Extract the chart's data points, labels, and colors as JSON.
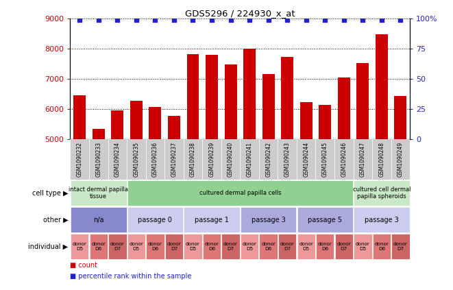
{
  "title": "GDS5296 / 224930_x_at",
  "samples": [
    "GSM1090232",
    "GSM1090233",
    "GSM1090234",
    "GSM1090235",
    "GSM1090236",
    "GSM1090237",
    "GSM1090238",
    "GSM1090239",
    "GSM1090240",
    "GSM1090241",
    "GSM1090242",
    "GSM1090243",
    "GSM1090244",
    "GSM1090245",
    "GSM1090246",
    "GSM1090247",
    "GSM1090248",
    "GSM1090249"
  ],
  "bar_values": [
    6450,
    5350,
    5950,
    6270,
    6080,
    5770,
    7830,
    7800,
    7490,
    8020,
    7160,
    7740,
    6220,
    6140,
    7060,
    7530,
    8490,
    6440
  ],
  "bar_color": "#cc0000",
  "dot_color": "#2222cc",
  "ylim_left": [
    5000,
    9000
  ],
  "ylim_right": [
    0,
    100
  ],
  "yticks_left": [
    5000,
    6000,
    7000,
    8000,
    9000
  ],
  "yticks_right": [
    0,
    25,
    50,
    75,
    100
  ],
  "ytick_right_labels": [
    "0",
    "25",
    "50",
    "75",
    "100%"
  ],
  "grid_values": [
    6000,
    7000,
    8000,
    9000
  ],
  "cell_type_groups": [
    {
      "label": "intact dermal papilla\ntissue",
      "start": 0,
      "end": 3,
      "color": "#c8e8c8"
    },
    {
      "label": "cultured dermal papilla cells",
      "start": 3,
      "end": 15,
      "color": "#90d090"
    },
    {
      "label": "cultured cell dermal\npapilla spheroids",
      "start": 15,
      "end": 18,
      "color": "#c8e8c8"
    }
  ],
  "other_groups": [
    {
      "label": "n/a",
      "start": 0,
      "end": 3,
      "color": "#8888cc"
    },
    {
      "label": "passage 0",
      "start": 3,
      "end": 6,
      "color": "#ccccee"
    },
    {
      "label": "passage 1",
      "start": 6,
      "end": 9,
      "color": "#ccccee"
    },
    {
      "label": "passage 3",
      "start": 9,
      "end": 12,
      "color": "#aaaadd"
    },
    {
      "label": "passage 5",
      "start": 12,
      "end": 15,
      "color": "#aaaadd"
    },
    {
      "label": "passage 3",
      "start": 15,
      "end": 18,
      "color": "#ccccee"
    }
  ],
  "individual_labels_top": [
    "donor",
    "donor",
    "donor",
    "donor",
    "donor",
    "donor",
    "donor",
    "donor",
    "donor",
    "donor",
    "donor",
    "donor",
    "donor",
    "donor",
    "donor",
    "donor",
    "donor",
    "donor"
  ],
  "individual_labels_bot": [
    "D5",
    "D6",
    "D7",
    "D5",
    "D6",
    "D7",
    "D5",
    "D6",
    "D7",
    "D5",
    "D6",
    "D7",
    "D5",
    "D6",
    "D7",
    "D5",
    "D6",
    "D7"
  ],
  "individual_colors": [
    "#ee9999",
    "#dd7777",
    "#cc6666",
    "#ee9999",
    "#dd7777",
    "#cc6666",
    "#ee9999",
    "#dd7777",
    "#cc6666",
    "#ee9999",
    "#dd7777",
    "#cc6666",
    "#ee9999",
    "#dd7777",
    "#cc6666",
    "#ee9999",
    "#dd7777",
    "#cc6666"
  ],
  "row_labels": [
    "cell type",
    "other",
    "individual"
  ],
  "legend_count_color": "#cc0000",
  "legend_pct_color": "#2222cc",
  "xtick_bg": "#cccccc"
}
